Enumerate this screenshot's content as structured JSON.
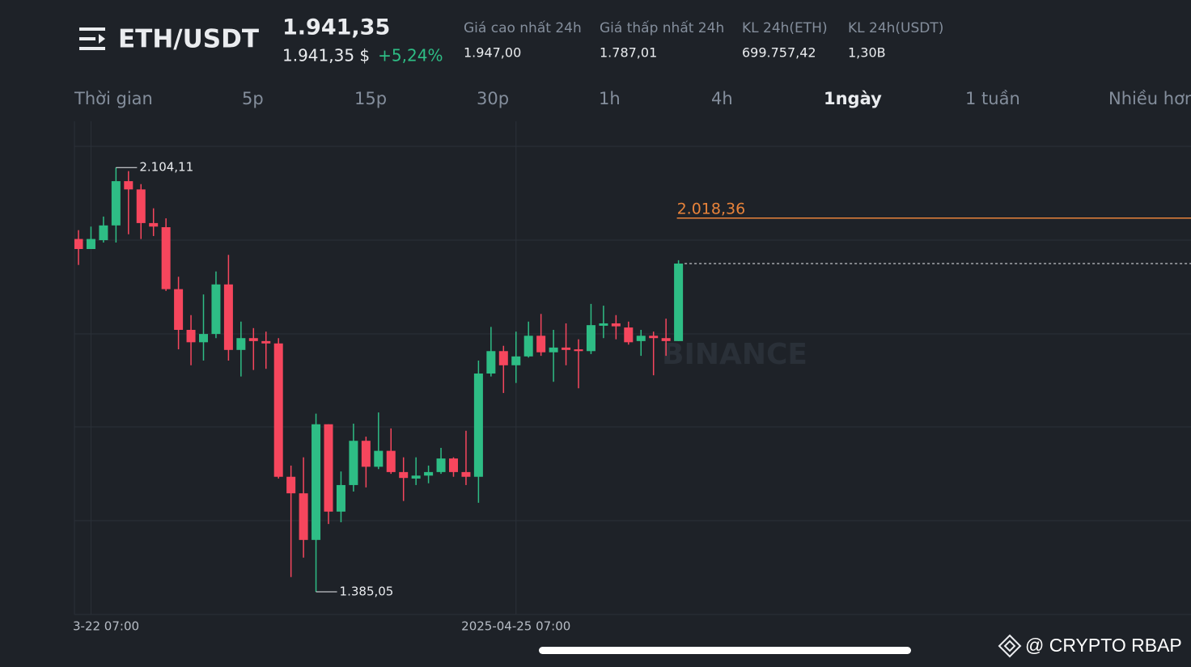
{
  "header": {
    "pair": "ETH/USDT",
    "price": "1.941,35",
    "price_usd": "1.941,35 $",
    "change": "+5,24%",
    "stats": [
      {
        "label": "Giá cao nhất 24h",
        "value": "1.947,00"
      },
      {
        "label": "Giá thấp nhất 24h",
        "value": "1.787,01"
      },
      {
        "label": "KL 24h(ETH)",
        "value": "699.757,42"
      },
      {
        "label": "KL 24h(USDT)",
        "value": "1,30B"
      }
    ]
  },
  "timeframes": {
    "items": [
      "Thời gian",
      "5p",
      "15p",
      "30p",
      "1h",
      "4h",
      "1ngày",
      "1 tuần",
      "Nhiều hơn"
    ],
    "active": 6
  },
  "watermark": "BINANCE",
  "footer": "@ CRYPTO RBAP",
  "chart_data": {
    "type": "candlestick",
    "categories": [
      null,
      "3-22 07:00",
      null,
      null,
      null,
      null,
      null,
      null,
      null,
      null,
      null,
      null,
      null,
      null,
      null,
      null,
      null,
      null,
      null,
      null,
      null,
      null,
      null,
      null,
      null,
      null,
      null,
      null,
      null,
      null,
      null,
      null,
      null,
      null,
      null,
      "2025-04-25 07:00",
      null,
      null,
      null,
      null,
      null,
      null,
      null,
      null,
      null,
      null,
      null,
      null,
      null
    ],
    "open": [
      1983,
      1966,
      1981,
      2006,
      2081,
      2067,
      2010,
      2003,
      1898,
      1829,
      1808,
      1822,
      1906,
      1795,
      1815,
      1810,
      1806,
      1580,
      1552,
      1473,
      1669,
      1521,
      1566,
      1641,
      1597,
      1624,
      1588,
      1577,
      1582,
      1588,
      1611,
      1588,
      1580,
      1755,
      1793,
      1769,
      1784,
      1819,
      1791,
      1799,
      1796,
      1793,
      1836,
      1840,
      1833,
      1810,
      1819,
      1815,
      1810
    ],
    "high": [
      1998,
      2004,
      2021,
      2104.11,
      2098,
      2076,
      2035,
      2018,
      1919,
      1854,
      1889,
      1928,
      1956,
      1843,
      1832,
      1826,
      1815,
      1599,
      1613,
      1687,
      1669,
      1589,
      1670,
      1648,
      1689,
      1662,
      1613,
      1613,
      1599,
      1629,
      1613,
      1658,
      1777,
      1834,
      1802,
      1826,
      1843,
      1856,
      1829,
      1840,
      1813,
      1873,
      1870,
      1854,
      1843,
      1829,
      1826,
      1848,
      1947
    ],
    "low": [
      1939,
      1966,
      1977,
      1977,
      1991,
      1983,
      1988,
      1895,
      1796,
      1769,
      1777,
      1815,
      1777,
      1750,
      1761,
      1763,
      1577,
      1410,
      1443,
      1385.05,
      1500,
      1503,
      1555,
      1562,
      1593,
      1585,
      1539,
      1566,
      1569,
      1585,
      1580,
      1566,
      1536,
      1750,
      1722,
      1739,
      1782,
      1785,
      1741,
      1769,
      1730,
      1788,
      1815,
      1813,
      1804,
      1785,
      1752,
      1785,
      1810
    ],
    "close": [
      1966,
      1983,
      2006,
      2081,
      2067,
      2010,
      2004,
      1898,
      1829,
      1808,
      1822,
      1906,
      1795,
      1815,
      1810,
      1806,
      1580,
      1552,
      1473,
      1669,
      1521,
      1566,
      1641,
      1597,
      1624,
      1588,
      1578,
      1582,
      1588,
      1611,
      1588,
      1580,
      1755,
      1793,
      1769,
      1784,
      1819,
      1791,
      1799,
      1795,
      1793,
      1837,
      1840,
      1835,
      1808,
      1819,
      1815,
      1810,
      1941.35
    ],
    "up_color": "#2ebd85",
    "down_color": "#f6465d",
    "ylim": [
      1346.7,
      2182.5
    ],
    "annotations": [
      {
        "text": "2.104,11",
        "value": 2104.11
      },
      {
        "text": "1.385,05",
        "value": 1385.05
      }
    ],
    "price_line": {
      "label": "2.018,36",
      "value": 2018.36,
      "color": "#e8833a"
    }
  }
}
